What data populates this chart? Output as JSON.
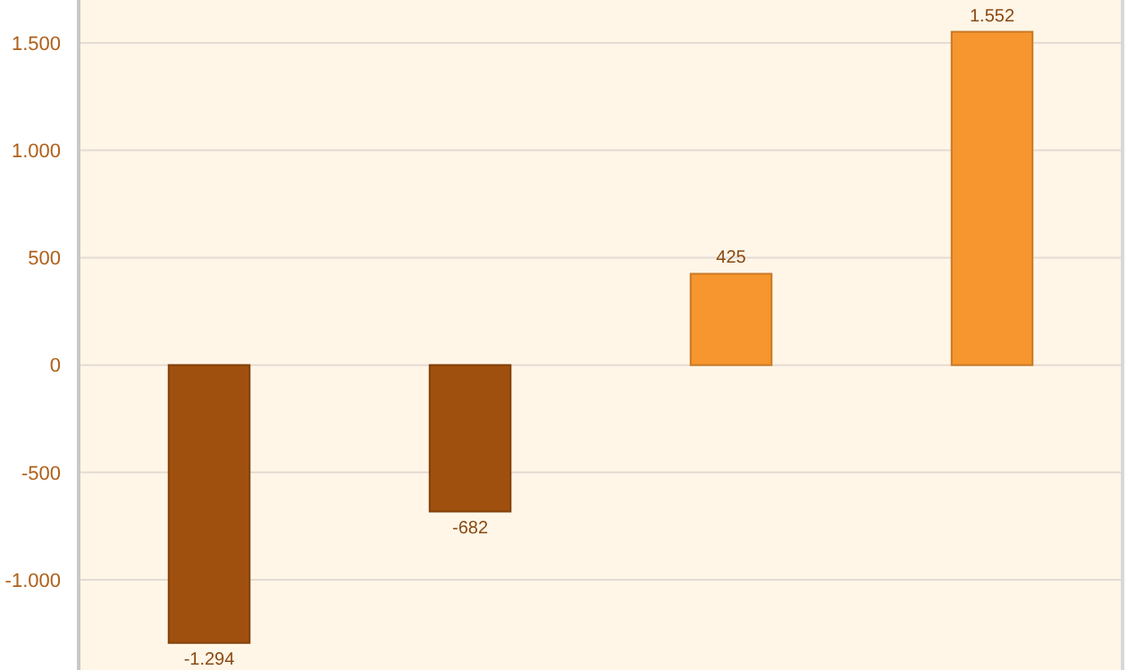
{
  "chart_data": {
    "type": "bar",
    "categories": [
      null,
      null,
      null,
      null
    ],
    "values": [
      -1294,
      -682,
      425,
      1552
    ],
    "colors": [
      "#a0500e",
      "#a0500e",
      "#f7962e",
      "#f7962e"
    ],
    "value_labels": [
      "-1.294",
      "-682",
      "425",
      "1.552"
    ],
    "ylim": [
      -1420,
      1700
    ],
    "yticks": [
      {
        "value": -1000,
        "label": "-1.000"
      },
      {
        "value": -500,
        "label": "-500"
      },
      0,
      500,
      {
        "value": 1000,
        "label": "1.000"
      },
      {
        "value": 1500,
        "label": "1.500"
      }
    ],
    "grid": true
  }
}
